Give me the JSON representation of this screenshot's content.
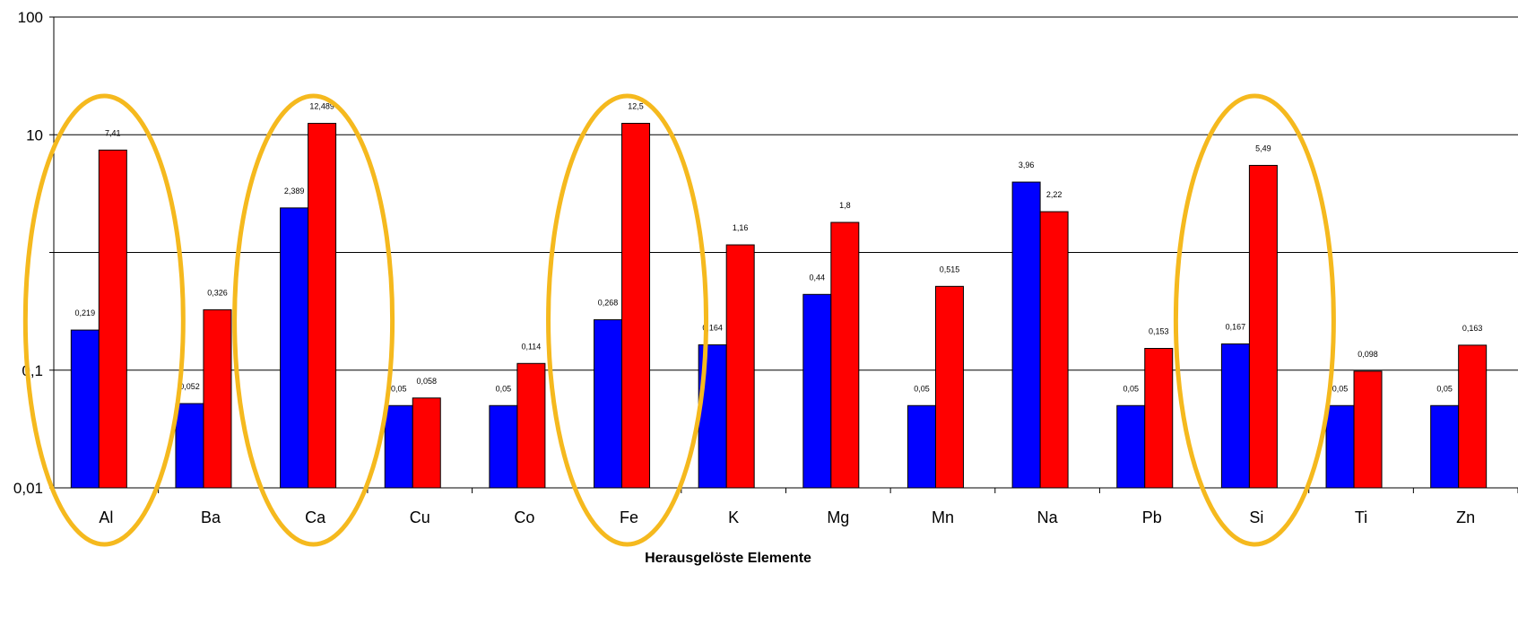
{
  "chart_data": {
    "type": "bar",
    "xlabel": "Herausgelöste Elemente",
    "ylabel": "",
    "yscale": "log",
    "ylim": [
      0.01,
      100
    ],
    "y_ticks": [
      "0,01",
      "0,1",
      "",
      "10",
      "100"
    ],
    "grid": true,
    "categories": [
      "Al",
      "Ba",
      "Ca",
      "Cu",
      "Co",
      "Fe",
      "K",
      "Mg",
      "Mn",
      "Na",
      "Pb",
      "Si",
      "Ti",
      "Zn"
    ],
    "series": [
      {
        "color": "#0000ff",
        "values": [
          0.219,
          0.052,
          2.389,
          0.05,
          0.05,
          0.268,
          0.164,
          0.44,
          0.05,
          3.96,
          0.05,
          0.167,
          0.05,
          0.05
        ],
        "labels": [
          "0,219",
          "0,052",
          "2,389",
          "0,05",
          "0,05",
          "0,268",
          "0,164",
          "0,44",
          "0,05",
          "3,96",
          "0,05",
          "0,167",
          "0,05",
          "0,05"
        ]
      },
      {
        "color": "#ff0000",
        "values": [
          7.41,
          0.326,
          12.489,
          0.058,
          0.114,
          12.5,
          1.16,
          1.8,
          0.515,
          2.22,
          0.153,
          5.49,
          0.098,
          0.163
        ],
        "labels": [
          "7,41",
          "0,326",
          "12,489",
          "0,058",
          "0,114",
          "12,5",
          "1,16",
          "1,8",
          "0,515",
          "2,22",
          "0,153",
          "5,49",
          "0,098",
          "0,163"
        ]
      }
    ],
    "highlighted_categories": [
      "Al",
      "Ca",
      "Fe",
      "Si"
    ],
    "highlight_color": "#f5b91e"
  }
}
